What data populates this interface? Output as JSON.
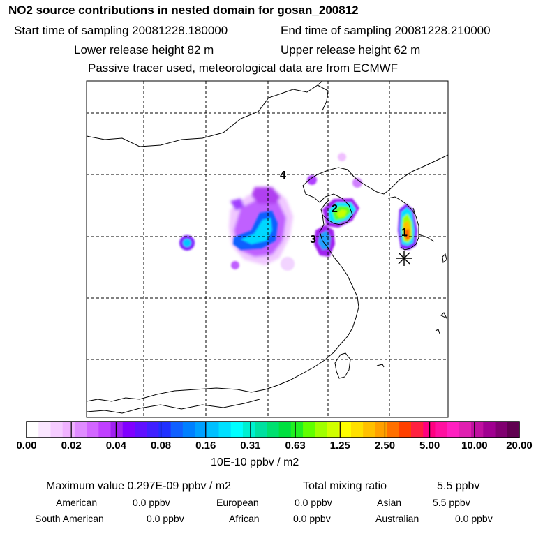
{
  "header": {
    "title": "NO2 source contributions in nested domain for gosan_200812",
    "start_label": "Start time of sampling 20081228.180000",
    "end_label": "End time of sampling 20081228.210000",
    "lower_label": "Lower release height   82 m",
    "upper_label": "Upper release height   62 m",
    "note": "Passive tracer used, meteorological data are from ECMWF"
  },
  "map": {
    "labels": [
      "1",
      "2",
      "3",
      "4"
    ],
    "receptor_symbol": "asterisk-icon"
  },
  "legend": {
    "ticks": [
      "0.00",
      "0.02",
      "0.04",
      "0.08",
      "0.16",
      "0.31",
      "0.63",
      "1.25",
      "2.50",
      "5.00",
      "10.00",
      "20.00"
    ],
    "unit": "10E-10 ppbv / m2",
    "colors": [
      "#ffffff",
      "#fae6ff",
      "#f5ccff",
      "#f0b2ff",
      "#e08cff",
      "#d266ff",
      "#c040ff",
      "#a020f0",
      "#8000ff",
      "#6010ff",
      "#4020ff",
      "#2030ff",
      "#1060ff",
      "#0080ff",
      "#00a0ff",
      "#00c0ff",
      "#00e0ff",
      "#00ffff",
      "#00f0d0",
      "#00e0a0",
      "#00e070",
      "#00e040",
      "#20f020",
      "#60ff00",
      "#a0ff00",
      "#d0ff00",
      "#ffff00",
      "#ffe000",
      "#ffc000",
      "#ffa000",
      "#ff7000",
      "#ff4000",
      "#ff2040",
      "#ff0080",
      "#ff10a0",
      "#ff20c0",
      "#e020b0",
      "#c010a0",
      "#a00090",
      "#800070",
      "#600050"
    ]
  },
  "stats": {
    "max_label": "Maximum value  0.297E-09 ppbv / m2",
    "total_label": "Total mixing ratio",
    "total_value": "5.5 ppbv",
    "regions": [
      {
        "name": "American",
        "value": "0.0 ppbv"
      },
      {
        "name": "European",
        "value": "0.0 ppbv"
      },
      {
        "name": "Asian",
        "value": "5.5 ppbv"
      },
      {
        "name": "South American",
        "value": "0.0 ppbv"
      },
      {
        "name": "African",
        "value": "0.0 ppbv"
      },
      {
        "name": "Australian",
        "value": "0.0 ppbv"
      }
    ]
  }
}
